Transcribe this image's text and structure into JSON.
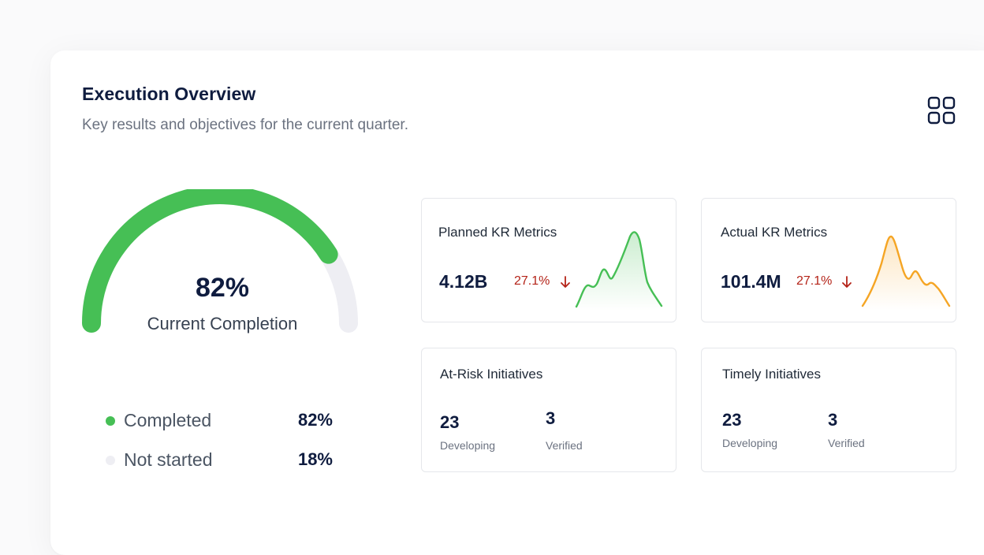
{
  "header": {
    "title": "Execution Overview",
    "subtitle": "Key results and objectives for the current quarter.",
    "layout_icon": "grid-layout-icon"
  },
  "gauge": {
    "progress": 0.82,
    "value_label": "82%",
    "caption": "Current Completion",
    "colors": {
      "completed": "#46bf55",
      "remaining": "#eeeef3"
    }
  },
  "legend": [
    {
      "name": "Completed",
      "value": "82%",
      "color": "#46bf55"
    },
    {
      "name": "Not started",
      "value": "18%",
      "color": "#eeeef3"
    }
  ],
  "metrics": {
    "planned": {
      "title": "Planned KR Metrics",
      "value": "4.12B",
      "delta": "27.1%",
      "trend": "down",
      "color": "#46bf55"
    },
    "actual": {
      "title": "Actual KR Metrics",
      "value": "101.4M",
      "delta": "27.1%",
      "trend": "down",
      "color": "#f5a524"
    },
    "at_risk": {
      "title": "At-Risk Initiatives",
      "developing_count": "23",
      "developing_label": "Developing",
      "verified_count": "3",
      "verified_label": "Verified"
    },
    "timely": {
      "title": "Timely Initiatives",
      "developing_count": "23",
      "developing_label": "Developing",
      "verified_count": "3",
      "verified_label": "Verified"
    }
  },
  "colors": {
    "negative_delta": "#b42318",
    "heading": "#0f1c3f"
  }
}
